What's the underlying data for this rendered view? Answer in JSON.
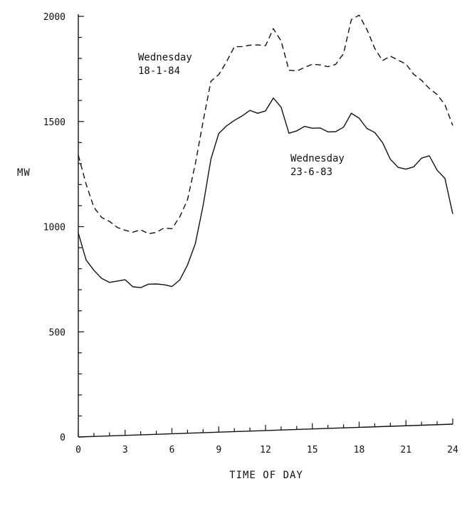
{
  "chart_data": {
    "type": "line",
    "xlabel": "TIME OF DAY",
    "ylabel": "MW",
    "xlim": [
      0,
      24
    ],
    "ylim": [
      0,
      2000
    ],
    "x_ticks": [
      "0",
      "3",
      "6",
      "9",
      "12",
      "15",
      "18",
      "21",
      "24"
    ],
    "y_ticks": [
      "0",
      "500",
      "1000",
      "1500",
      "2000"
    ],
    "grid": false,
    "series": [
      {
        "name": "Wednesday 18-1-84",
        "style": "dashed",
        "x": [
          0,
          0.5,
          1,
          1.5,
          2,
          2.5,
          3,
          3.5,
          4,
          4.5,
          5,
          5.5,
          6,
          6.5,
          7,
          7.5,
          8,
          8.5,
          9,
          9.5,
          10,
          10.5,
          11,
          11.5,
          12,
          12.5,
          13,
          13.5,
          14,
          14.5,
          15,
          15.5,
          16,
          16.5,
          17,
          17.5,
          18,
          18.5,
          19,
          19.5,
          20,
          20.5,
          21,
          21.5,
          22,
          22.5,
          23,
          23.5,
          24
        ],
        "values": [
          1340,
          1200,
          1090,
          1040,
          1020,
          990,
          975,
          965,
          975,
          955,
          960,
          980,
          975,
          1030,
          1110,
          1280,
          1480,
          1670,
          1700,
          1760,
          1830,
          1830,
          1835,
          1835,
          1830,
          1910,
          1850,
          1710,
          1705,
          1720,
          1735,
          1730,
          1720,
          1730,
          1780,
          1940,
          1960,
          1890,
          1800,
          1740,
          1760,
          1740,
          1720,
          1670,
          1640,
          1600,
          1570,
          1520,
          1420
        ]
      },
      {
        "name": "Wednesday 23-6-83",
        "style": "solid",
        "x": [
          0,
          0.5,
          1,
          1.5,
          2,
          2.5,
          3,
          3.5,
          4,
          4.5,
          5,
          5.5,
          6,
          6.5,
          7,
          7.5,
          8,
          8.5,
          9,
          9.5,
          10,
          10.5,
          11,
          11.5,
          12,
          12.5,
          13,
          13.5,
          14,
          14.5,
          15,
          15.5,
          16,
          16.5,
          17,
          17.5,
          18,
          18.5,
          19,
          19.5,
          20,
          20.5,
          21,
          21.5,
          22,
          22.5,
          23,
          23.5,
          24
        ],
        "values": [
          970,
          840,
          790,
          750,
          730,
          735,
          740,
          705,
          700,
          715,
          715,
          710,
          700,
          730,
          800,
          900,
          1080,
          1300,
          1420,
          1455,
          1480,
          1500,
          1525,
          1510,
          1520,
          1580,
          1535,
          1410,
          1420,
          1440,
          1430,
          1430,
          1410,
          1410,
          1430,
          1495,
          1470,
          1420,
          1400,
          1350,
          1270,
          1230,
          1220,
          1230,
          1270,
          1280,
          1210,
          1170,
          1000
        ]
      }
    ],
    "annotations": [
      {
        "lines": [
          "Wednesday",
          "18-1-84"
        ],
        "series": 0
      },
      {
        "lines": [
          "Wednesday",
          "23-6-83"
        ],
        "series": 1
      }
    ]
  }
}
